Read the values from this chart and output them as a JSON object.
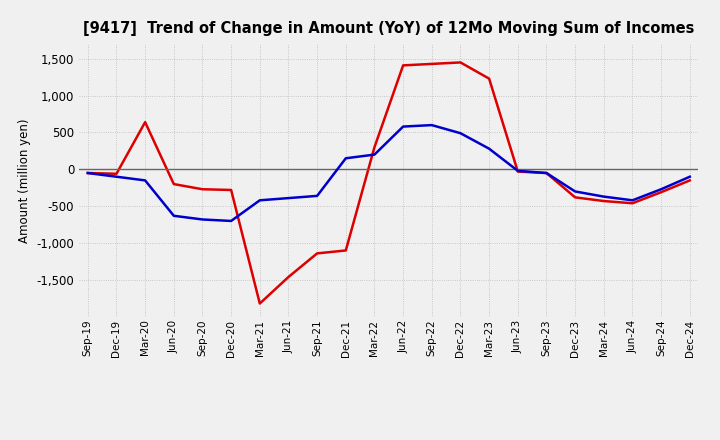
{
  "title": "[9417]  Trend of Change in Amount (YoY) of 12Mo Moving Sum of Incomes",
  "ylabel": "Amount (million yen)",
  "xlabels": [
    "Sep-19",
    "Dec-19",
    "Mar-20",
    "Jun-20",
    "Sep-20",
    "Dec-20",
    "Mar-21",
    "Jun-21",
    "Sep-21",
    "Dec-21",
    "Mar-22",
    "Jun-22",
    "Sep-22",
    "Dec-22",
    "Mar-23",
    "Jun-23",
    "Sep-23",
    "Dec-23",
    "Mar-24",
    "Jun-24",
    "Sep-24",
    "Dec-24"
  ],
  "ordinary_income": [
    -50,
    -100,
    -150,
    -630,
    -680,
    -700,
    -420,
    -390,
    -360,
    150,
    200,
    580,
    600,
    490,
    280,
    -20,
    -50,
    -300,
    -370,
    -420,
    -270,
    -100
  ],
  "net_income": [
    -50,
    -60,
    640,
    -200,
    -270,
    -280,
    -1820,
    -1460,
    -1140,
    -1100,
    300,
    1410,
    1430,
    1450,
    1230,
    -30,
    -50,
    -380,
    -430,
    -460,
    -310,
    -150
  ],
  "ylim": [
    -2000,
    1700
  ],
  "yticks": [
    -1500,
    -1000,
    -500,
    0,
    500,
    1000,
    1500
  ],
  "ordinary_color": "#0000cc",
  "net_color": "#dd0000",
  "background_color": "#f0f0f0",
  "grid_color": "#bbbbbb",
  "linewidth": 1.8
}
